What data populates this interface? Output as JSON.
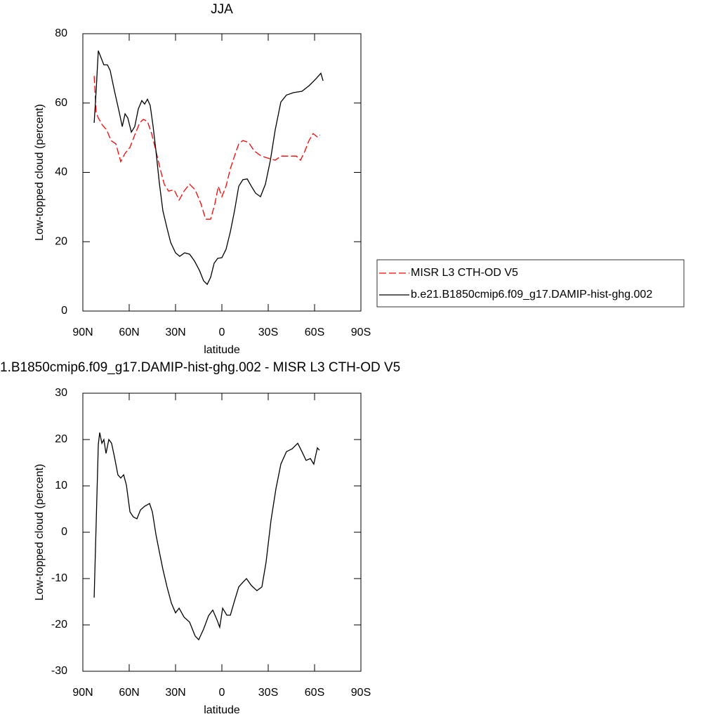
{
  "chart_data": [
    {
      "type": "line",
      "title": "JJA",
      "xlabel": "latitude",
      "ylabel": "Low-topped cloud (percent)",
      "xlim": [
        90,
        -90
      ],
      "xticks": [
        {
          "value": 90,
          "label": "90N"
        },
        {
          "value": 60,
          "label": "60N"
        },
        {
          "value": 30,
          "label": "30N"
        },
        0,
        {
          "value": -30,
          "label": "30S"
        },
        {
          "value": -60,
          "label": "60S"
        },
        {
          "value": -90,
          "label": "90S"
        }
      ],
      "ylim": [
        0,
        80
      ],
      "yticks": [
        0,
        20,
        40,
        60,
        80
      ],
      "legend": "right",
      "series": [
        {
          "name": "MISR L3 CTH-OD V5",
          "color": "#ff0000",
          "style": "dashed",
          "x": [
            82.7,
            81.4,
            80,
            77.3,
            74.5,
            71.8,
            68.6,
            65.5,
            62.7,
            59.5,
            56.4,
            53.2,
            50.9,
            48.2,
            45.5,
            42.7,
            40,
            37.3,
            34.5,
            30.9,
            27.7,
            24.5,
            20.9,
            17.3,
            13.6,
            10.5,
            7.3,
            4.5,
            2.3,
            0,
            -2.7,
            -5.5,
            -8.2,
            -10.9,
            -13.6,
            -17.3,
            -20.9,
            -25.5,
            -30,
            -34.5,
            -38.2,
            -43.6,
            -48.2,
            -50.9,
            -53.6,
            -56.4,
            -59.1,
            -61.8,
            -63.6
          ],
          "values": [
            67.8,
            57.3,
            55.7,
            53.6,
            52.2,
            49.2,
            48.2,
            43.1,
            45.5,
            47.2,
            50.8,
            54.3,
            55.3,
            54.7,
            51.2,
            46.2,
            41.1,
            36.6,
            34.6,
            35,
            32,
            34.6,
            36.6,
            35,
            31,
            26.5,
            26.5,
            31,
            36,
            33,
            36,
            41.1,
            44.7,
            48.2,
            49.2,
            48.6,
            46.2,
            44.7,
            44.1,
            43.5,
            44.7,
            44.7,
            44.7,
            43.5,
            46,
            49.2,
            51.2,
            50.2,
            50.8
          ]
        },
        {
          "name": "b.e21.B1850cmip6.f09_g17.DAMIP-hist-ghg.002",
          "color": "#000000",
          "style": "solid",
          "x": [
            82.7,
            81.4,
            80,
            78.6,
            76.4,
            74.1,
            72.3,
            69.5,
            66.4,
            64.5,
            62.7,
            60.9,
            58.6,
            56.4,
            54.1,
            51.8,
            50,
            48.2,
            46.4,
            44.5,
            42.7,
            40.5,
            38.2,
            35.5,
            33.2,
            30,
            27.3,
            24.1,
            20.9,
            17.7,
            14.5,
            11.8,
            9.5,
            7.3,
            5,
            2.7,
            0,
            -2.7,
            -5.5,
            -8.2,
            -10.9,
            -13.6,
            -16.4,
            -19.1,
            -21.8,
            -25,
            -28.2,
            -31.4,
            -34.5,
            -38.2,
            -41.8,
            -46.4,
            -51.8,
            -56.4,
            -60.9,
            -64.1,
            -65.5
          ],
          "values": [
            54.3,
            63.4,
            75.1,
            73.5,
            71,
            71,
            69.4,
            63.4,
            57.3,
            53.2,
            56.9,
            55.7,
            51.6,
            53.2,
            58.3,
            60.7,
            59.7,
            61.1,
            59.3,
            53.2,
            46.2,
            37,
            28.9,
            23.9,
            19.8,
            16.8,
            15.8,
            16.8,
            16.4,
            14.4,
            11.7,
            8.7,
            7.7,
            9.7,
            13.8,
            15.2,
            15.4,
            17.8,
            22.9,
            28.9,
            36,
            37.9,
            38.1,
            36,
            34,
            33,
            36.6,
            43.5,
            52.2,
            60.3,
            62.3,
            63,
            63.4,
            65,
            67,
            68.6,
            66.4
          ]
        }
      ]
    },
    {
      "type": "line",
      "title": "1.B1850cmip6.f09_g17.DAMIP-hist-ghg.002 - MISR L3 CTH-OD V5",
      "xlabel": "latitude",
      "ylabel": "Low-topped cloud (percent)",
      "xlim": [
        90,
        -90
      ],
      "xticks": [
        {
          "value": 90,
          "label": "90N"
        },
        {
          "value": 60,
          "label": "60N"
        },
        {
          "value": 30,
          "label": "30N"
        },
        0,
        {
          "value": -30,
          "label": "30S"
        },
        {
          "value": -60,
          "label": "60S"
        },
        {
          "value": -90,
          "label": "90S"
        }
      ],
      "ylim": [
        -30,
        30
      ],
      "yticks": [
        -30,
        -20,
        -10,
        0,
        10,
        20,
        30
      ],
      "series": [
        {
          "color": "#000000",
          "style": "solid",
          "x": [
            82.7,
            80,
            79.1,
            77.7,
            76.4,
            75,
            73.2,
            71.4,
            69.5,
            67.3,
            65.5,
            63.6,
            61.8,
            59.5,
            57.3,
            55,
            52.7,
            50,
            46.8,
            45,
            42.7,
            40.5,
            38.2,
            35.5,
            32.7,
            30,
            27.7,
            24.5,
            20.9,
            17.3,
            15,
            11.8,
            8.6,
            5.9,
            3.2,
            1.4,
            -0.5,
            -3.2,
            -5.5,
            -8.2,
            -10.9,
            -13.6,
            -15.9,
            -19.1,
            -22.7,
            -25.9,
            -28.6,
            -31.8,
            -35,
            -38.2,
            -41.8,
            -45.5,
            -49.1,
            -51.8,
            -54.5,
            -57.3,
            -59.5,
            -61.8,
            -63.2
          ],
          "values": [
            -14.1,
            18.9,
            21.5,
            19.2,
            20,
            17,
            20,
            19.2,
            16.2,
            12.4,
            11.7,
            12.4,
            10.2,
            4.4,
            3.3,
            2.9,
            4.8,
            5.6,
            6.2,
            4.4,
            -0.5,
            -4.2,
            -8,
            -11.8,
            -15.3,
            -17.4,
            -16.4,
            -18.3,
            -19.4,
            -22.4,
            -23.2,
            -20.9,
            -18,
            -16.8,
            -18.9,
            -20.5,
            -16.4,
            -17.9,
            -17.9,
            -14.8,
            -11.8,
            -10.8,
            -10,
            -11.5,
            -12.6,
            -11.8,
            -6.5,
            2.6,
            9.4,
            14.7,
            17.4,
            18,
            19.2,
            17.4,
            15.5,
            15.9,
            14.7,
            18.2,
            17.7
          ]
        }
      ]
    }
  ]
}
